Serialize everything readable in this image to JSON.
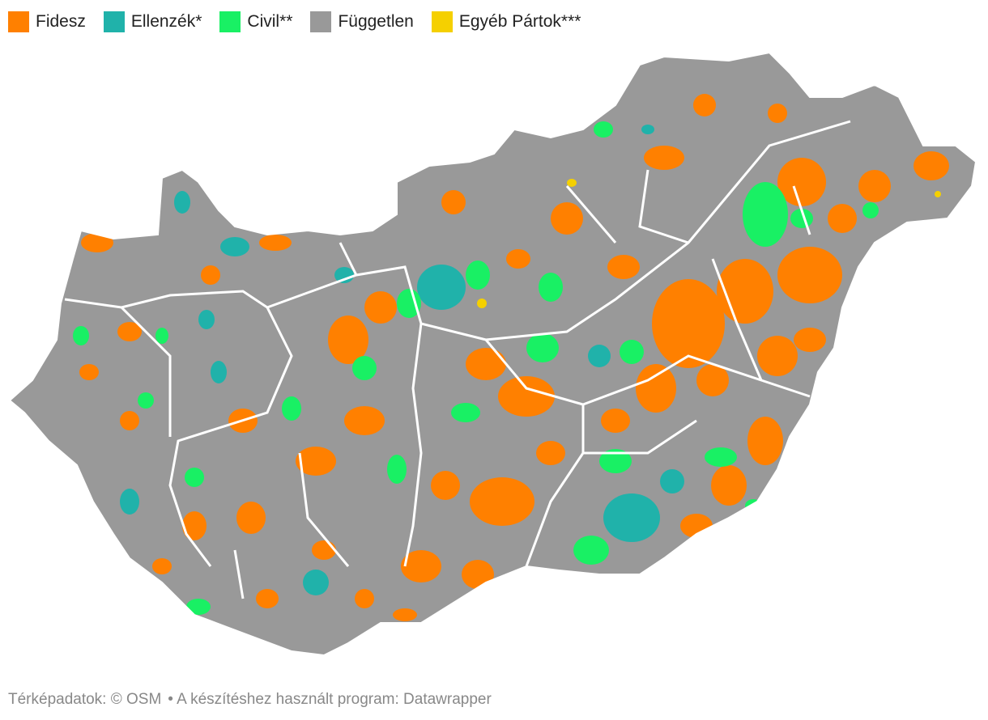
{
  "legend": [
    {
      "label": "Fidesz",
      "color": "#ff8000"
    },
    {
      "label": "Ellenzék*",
      "color": "#20b2aa"
    },
    {
      "label": "Civil**",
      "color": "#19f064"
    },
    {
      "label": "Független",
      "color": "#999999"
    },
    {
      "label": "Egyéb Pártok***",
      "color": "#f5d000"
    }
  ],
  "footer": {
    "source": "Térképadatok: © OSM",
    "tool": "• A készítéshez használt program: Datawrapper"
  }
}
